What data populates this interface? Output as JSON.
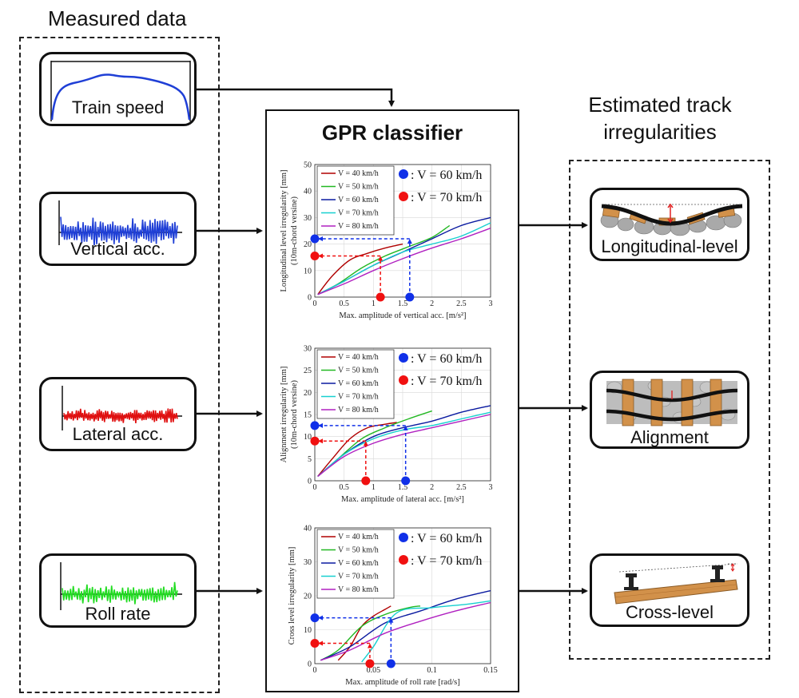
{
  "headers": {
    "measured": "Measured data",
    "estimated_line1": "Estimated track",
    "estimated_line2": "irregularities"
  },
  "inputs": [
    {
      "label": "Train speed",
      "color": "#1f3fd6"
    },
    {
      "label": "Vertical acc.",
      "color": "#1f3fd6"
    },
    {
      "label": "Lateral acc.",
      "color": "#e01010"
    },
    {
      "label": "Roll rate",
      "color": "#22dd22"
    }
  ],
  "outputs": [
    {
      "label": "Longitudinal-level",
      "icon": "longitudinal-level-track-icon"
    },
    {
      "label": "Alignment",
      "icon": "alignment-track-icon"
    },
    {
      "label": "Cross-level",
      "icon": "cross-level-track-icon"
    }
  ],
  "classifier": {
    "title": "GPR classifier"
  },
  "colors": {
    "v40": "#b00000",
    "v50": "#22b822",
    "v60": "#0a1aa0",
    "v70": "#18d0d0",
    "v80": "#b020c0",
    "marker_blue": "#1030e8",
    "marker_red": "#f01010"
  },
  "chart_data": [
    {
      "type": "line",
      "xlabel": "Max. amplitude of vertical acc. [m/s²]",
      "ylabel_line1": "Longitudinal level irregularity [mm]",
      "ylabel_line2": "(10m-chord versine)",
      "xlim": [
        0,
        3
      ],
      "ylim": [
        0,
        50
      ],
      "xticks": [
        "0",
        "0.5",
        "1",
        "1.5",
        "2",
        "2.5",
        "3"
      ],
      "yticks": [
        "0",
        "10",
        "20",
        "30",
        "40",
        "50"
      ],
      "legend": [
        "V = 40 km/h",
        "V = 50 km/h",
        "V = 60 km/h",
        "V = 70 km/h",
        "V = 80 km/h"
      ],
      "annotations": [
        ": V = 60 km/h",
        ": V = 70 km/h"
      ],
      "series": [
        {
          "name": "V = 40 km/h",
          "x": [
            0.05,
            0.3,
            0.6,
            0.9,
            1.2,
            1.5
          ],
          "y": [
            1,
            8,
            14,
            16.5,
            18.5,
            20
          ]
        },
        {
          "name": "V = 50 km/h",
          "x": [
            0.05,
            0.4,
            0.8,
            1.2,
            1.6,
            2.0,
            2.3
          ],
          "y": [
            1,
            5,
            11,
            15.5,
            19,
            22.5,
            27
          ]
        },
        {
          "name": "V = 60 km/h",
          "x": [
            0.05,
            0.5,
            1.0,
            1.5,
            2.0,
            2.5,
            3.0
          ],
          "y": [
            1,
            6,
            12,
            17,
            22,
            27,
            30
          ]
        },
        {
          "name": "V = 70 km/h",
          "x": [
            0.05,
            0.5,
            1.0,
            1.5,
            2.0,
            2.5,
            3.0
          ],
          "y": [
            1,
            6,
            12,
            17,
            20,
            23,
            28
          ]
        },
        {
          "name": "V = 80 km/h",
          "x": [
            0.05,
            0.5,
            1.0,
            1.5,
            2.0,
            2.5,
            3.0
          ],
          "y": [
            1,
            5,
            10,
            14.5,
            18.5,
            22,
            26
          ]
        }
      ],
      "markers": [
        {
          "color": "blue",
          "x": 1.62,
          "y": 22
        },
        {
          "color": "red",
          "x": 1.12,
          "y": 15.5
        }
      ]
    },
    {
      "type": "line",
      "xlabel": "Max. amplitude of lateral acc. [m/s²]",
      "ylabel_line1": "Alignment irregularity [mm]",
      "ylabel_line2": "(10m-chord versine)",
      "xlim": [
        0,
        3
      ],
      "ylim": [
        0,
        30
      ],
      "xticks": [
        "0",
        "0.5",
        "1",
        "1.5",
        "2",
        "2.5",
        "3"
      ],
      "yticks": [
        "0",
        "5",
        "10",
        "15",
        "20",
        "25",
        "30"
      ],
      "legend": [
        "V = 40 km/h",
        "V = 50 km/h",
        "V = 60 km/h",
        "V = 70 km/h",
        "V = 80 km/h"
      ],
      "annotations": [
        ": V = 60 km/h",
        ": V = 70 km/h"
      ],
      "series": [
        {
          "name": "V = 40 km/h",
          "x": [
            0.05,
            0.3,
            0.6,
            0.9,
            1.2,
            1.4
          ],
          "y": [
            1,
            5,
            9.5,
            12,
            12.8,
            13.2
          ]
        },
        {
          "name": "V = 50 km/h",
          "x": [
            0.05,
            0.4,
            0.8,
            1.2,
            1.6,
            2.0
          ],
          "y": [
            1,
            5,
            9.5,
            12,
            14,
            15.8
          ]
        },
        {
          "name": "V = 60 km/h",
          "x": [
            0.05,
            0.5,
            1.0,
            1.5,
            2.0,
            2.5,
            3.0
          ],
          "y": [
            1,
            6,
            10,
            12,
            13.5,
            15.5,
            17
          ]
        },
        {
          "name": "V = 70 km/h",
          "x": [
            0.05,
            0.5,
            1.0,
            1.5,
            2.0,
            2.5,
            3.0
          ],
          "y": [
            1,
            6,
            9.5,
            11.5,
            12.5,
            14,
            15.5
          ]
        },
        {
          "name": "V = 80 km/h",
          "x": [
            0.05,
            0.5,
            1.0,
            1.5,
            2.0,
            2.5,
            3.0
          ],
          "y": [
            1,
            5.5,
            8.5,
            10.5,
            12,
            13.5,
            15
          ]
        }
      ],
      "markers": [
        {
          "color": "blue",
          "x": 1.55,
          "y": 12.5
        },
        {
          "color": "red",
          "x": 0.87,
          "y": 9
        }
      ]
    },
    {
      "type": "line",
      "xlabel": "Max. amplitude of roll rate [rad/s]",
      "ylabel_line1": "Cross level irregularity [mm]",
      "ylabel_line2": "",
      "xlim": [
        0,
        0.15
      ],
      "ylim": [
        0,
        40
      ],
      "xticks": [
        "0",
        "0.05",
        "0.1",
        "0.15"
      ],
      "yticks": [
        "0",
        "10",
        "20",
        "30",
        "40"
      ],
      "legend": [
        "V = 40 km/h",
        "V = 50 km/h",
        "V = 60 km/h",
        "V = 70 km/h",
        "V = 80 km/h"
      ],
      "annotations": [
        ": V = 60 km/h",
        ": V = 70 km/h"
      ],
      "series": [
        {
          "name": "V = 40 km/h",
          "x": [
            0.02,
            0.03,
            0.04,
            0.05,
            0.06,
            0.065
          ],
          "y": [
            1,
            5,
            11,
            14,
            16,
            17
          ]
        },
        {
          "name": "V = 50 km/h",
          "x": [
            0.005,
            0.02,
            0.04,
            0.06,
            0.08,
            0.09
          ],
          "y": [
            1,
            4,
            11,
            14.5,
            16.5,
            17
          ]
        },
        {
          "name": "V = 60 km/h",
          "x": [
            0.005,
            0.03,
            0.06,
            0.09,
            0.12,
            0.15
          ],
          "y": [
            1,
            5,
            12,
            15.5,
            19,
            21.5
          ]
        },
        {
          "name": "V = 70 km/h",
          "x": [
            0.04,
            0.05,
            0.07,
            0.1,
            0.13,
            0.15
          ],
          "y": [
            0.5,
            5,
            15,
            16.5,
            17.5,
            18.5
          ]
        },
        {
          "name": "V = 80 km/h",
          "x": [
            0.005,
            0.03,
            0.06,
            0.09,
            0.12,
            0.15
          ],
          "y": [
            1,
            4,
            9,
            12.5,
            15.5,
            18
          ]
        }
      ],
      "markers": [
        {
          "color": "blue",
          "x": 0.065,
          "y": 13.5
        },
        {
          "color": "red",
          "x": 0.047,
          "y": 6
        }
      ]
    }
  ]
}
